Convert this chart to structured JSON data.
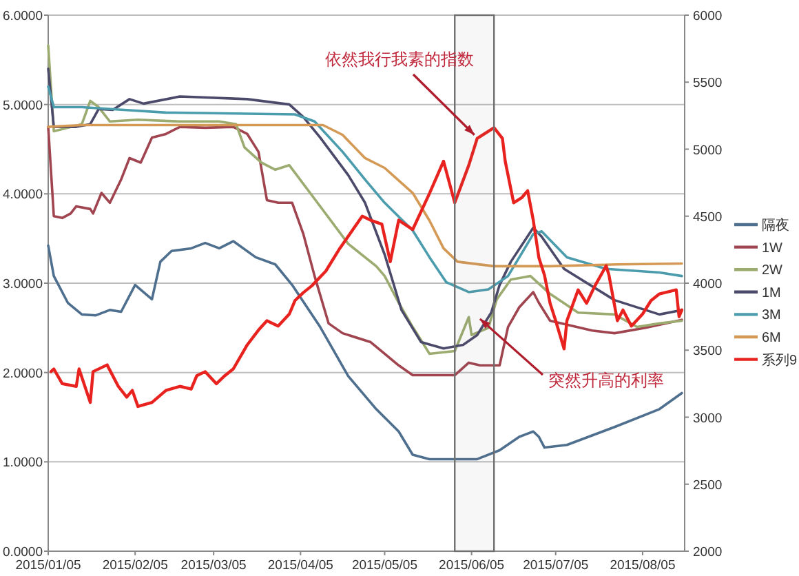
{
  "chart_data": {
    "type": "line",
    "xlim": [
      "2015-01-05",
      "2015-08-20"
    ],
    "xticks": [
      {
        "value": "2015-01-05",
        "label": "2015/01/05"
      },
      {
        "value": "2015-02-05",
        "label": "2015/02/05"
      },
      {
        "value": "2015-03-05",
        "label": "2015/03/05"
      },
      {
        "value": "2015-04-05",
        "label": "2015/04/05"
      },
      {
        "value": "2015-05-05",
        "label": "2015/05/05"
      },
      {
        "value": "2015-06-05",
        "label": "2015/06/05"
      },
      {
        "value": "2015-07-05",
        "label": "2015/07/05"
      },
      {
        "value": "2015-08-05",
        "label": "2015/08/05"
      }
    ],
    "ylim": [
      0,
      6
    ],
    "yticks": [
      {
        "value": 0,
        "label": "0.0000"
      },
      {
        "value": 1,
        "label": "1.0000"
      },
      {
        "value": 2,
        "label": "2.0000"
      },
      {
        "value": 3,
        "label": "3.0000"
      },
      {
        "value": 4,
        "label": "4.0000"
      },
      {
        "value": 5,
        "label": "5.0000"
      },
      {
        "value": 6,
        "label": "6.0000"
      }
    ],
    "y2lim": [
      2000,
      6000
    ],
    "y2ticks": [
      2000,
      2500,
      3000,
      3500,
      4000,
      4500,
      5000,
      5500,
      6000
    ],
    "grid": "y",
    "legend": "right",
    "annotations": [
      {
        "text": "依然我行我素的指数",
        "x": "2015-06-06",
        "y": 4.66
      },
      {
        "text": "突然升高的利率",
        "x": "2015-06-08",
        "y": 2.6
      }
    ],
    "bands": [
      {
        "axis": "x",
        "from": "2015-05-30",
        "to": "2015-06-13",
        "color": "#707070"
      }
    ],
    "series": [
      {
        "name": "隔夜",
        "color": "#4f6f8f",
        "x": [
          "2015-01-05",
          "2015-01-07",
          "2015-01-12",
          "2015-01-17",
          "2015-01-22",
          "2015-01-27",
          "2015-01-31",
          "2015-02-05",
          "2015-02-11",
          "2015-02-14",
          "2015-02-18",
          "2015-02-25",
          "2015-03-02",
          "2015-03-07",
          "2015-03-12",
          "2015-03-20",
          "2015-03-27",
          "2015-04-02",
          "2015-04-12",
          "2015-04-22",
          "2015-05-02",
          "2015-05-10",
          "2015-05-15",
          "2015-05-21",
          "2015-06-07",
          "2015-06-15",
          "2015-06-22",
          "2015-06-27",
          "2015-06-29",
          "2015-07-01",
          "2015-07-09",
          "2015-07-26",
          "2015-08-11",
          "2015-08-19"
        ],
        "values": [
          3.42,
          3.08,
          2.78,
          2.65,
          2.64,
          2.7,
          2.68,
          2.98,
          2.82,
          3.24,
          3.36,
          3.39,
          3.45,
          3.39,
          3.47,
          3.29,
          3.21,
          2.98,
          2.51,
          1.96,
          1.59,
          1.34,
          1.08,
          1.03,
          1.03,
          1.13,
          1.28,
          1.34,
          1.28,
          1.16,
          1.19,
          1.39,
          1.59,
          1.77
        ]
      },
      {
        "name": "1W",
        "color": "#a04550",
        "x": [
          "2015-01-05",
          "2015-01-07",
          "2015-01-10",
          "2015-01-13",
          "2015-01-15",
          "2015-01-20",
          "2015-01-21",
          "2015-01-24",
          "2015-01-27",
          "2015-01-31",
          "2015-02-03",
          "2015-02-07",
          "2015-02-11",
          "2015-02-16",
          "2015-02-21",
          "2015-03-02",
          "2015-03-12",
          "2015-03-17",
          "2015-03-21",
          "2015-03-24",
          "2015-03-28",
          "2015-04-02",
          "2015-04-06",
          "2015-04-10",
          "2015-04-15",
          "2015-04-20",
          "2015-04-30",
          "2015-05-10",
          "2015-05-15",
          "2015-05-30",
          "2015-06-04",
          "2015-06-08",
          "2015-06-15",
          "2015-06-18",
          "2015-06-22",
          "2015-06-27",
          "2015-06-29",
          "2015-07-03",
          "2015-07-18",
          "2015-07-26",
          "2015-08-06",
          "2015-08-19"
        ],
        "values": [
          4.75,
          3.75,
          3.73,
          3.78,
          3.86,
          3.83,
          3.78,
          4.01,
          3.9,
          4.16,
          4.4,
          4.35,
          4.63,
          4.67,
          4.75,
          4.74,
          4.75,
          4.67,
          4.47,
          3.93,
          3.9,
          3.9,
          3.55,
          3.08,
          2.55,
          2.44,
          2.34,
          2.08,
          1.97,
          1.97,
          2.11,
          2.08,
          2.08,
          2.51,
          2.73,
          2.9,
          2.78,
          2.58,
          2.47,
          2.44,
          2.5,
          2.59
        ]
      },
      {
        "name": "2W",
        "color": "#9cab70",
        "x": [
          "2015-01-05",
          "2015-01-07",
          "2015-01-12",
          "2015-01-17",
          "2015-01-20",
          "2015-01-23",
          "2015-01-27",
          "2015-02-06",
          "2015-02-21",
          "2015-03-07",
          "2015-03-13",
          "2015-03-16",
          "2015-03-22",
          "2015-03-27",
          "2015-04-01",
          "2015-04-12",
          "2015-04-22",
          "2015-05-02",
          "2015-05-05",
          "2015-05-10",
          "2015-05-15",
          "2015-05-21",
          "2015-05-30",
          "2015-06-04",
          "2015-06-05",
          "2015-06-11",
          "2015-06-14",
          "2015-06-19",
          "2015-06-26",
          "2015-07-03",
          "2015-07-13",
          "2015-07-26",
          "2015-08-03",
          "2015-08-11",
          "2015-08-19"
        ],
        "values": [
          5.66,
          4.7,
          4.74,
          4.78,
          5.04,
          4.97,
          4.81,
          4.83,
          4.81,
          4.81,
          4.78,
          4.52,
          4.35,
          4.27,
          4.32,
          3.86,
          3.44,
          3.19,
          3.08,
          2.78,
          2.51,
          2.21,
          2.24,
          2.62,
          2.42,
          2.5,
          2.82,
          3.04,
          3.08,
          2.88,
          2.67,
          2.65,
          2.51,
          2.55,
          2.58
        ]
      },
      {
        "name": "1M",
        "color": "#4b4a6b",
        "x": [
          "2015-01-05",
          "2015-01-07",
          "2015-01-15",
          "2015-01-20",
          "2015-01-23",
          "2015-01-28",
          "2015-02-03",
          "2015-02-08",
          "2015-02-21",
          "2015-03-17",
          "2015-04-01",
          "2015-04-06",
          "2015-04-12",
          "2015-04-22",
          "2015-04-28",
          "2015-05-05",
          "2015-05-11",
          "2015-05-18",
          "2015-05-26",
          "2015-06-02",
          "2015-06-07",
          "2015-06-12",
          "2015-06-15",
          "2015-06-19",
          "2015-06-27",
          "2015-06-30",
          "2015-07-08",
          "2015-07-26",
          "2015-08-11",
          "2015-08-19"
        ],
        "values": [
          5.4,
          4.75,
          4.75,
          4.78,
          4.95,
          4.94,
          5.06,
          5.01,
          5.09,
          5.06,
          5.0,
          4.86,
          4.63,
          4.21,
          3.9,
          3.32,
          2.7,
          2.34,
          2.27,
          2.31,
          2.42,
          2.67,
          2.98,
          3.24,
          3.62,
          3.52,
          3.16,
          2.81,
          2.65,
          2.7
        ]
      },
      {
        "name": "3M",
        "color": "#4b9cad",
        "x": [
          "2015-01-05",
          "2015-01-07",
          "2015-01-17",
          "2015-02-01",
          "2015-02-16",
          "2015-04-03",
          "2015-04-10",
          "2015-04-20",
          "2015-04-28",
          "2015-05-05",
          "2015-05-15",
          "2015-05-21",
          "2015-05-27",
          "2015-06-04",
          "2015-06-11",
          "2015-06-18",
          "2015-06-27",
          "2015-06-30",
          "2015-07-09",
          "2015-07-23",
          "2015-08-11",
          "2015-08-19"
        ],
        "values": [
          5.2,
          4.97,
          4.97,
          4.94,
          4.91,
          4.89,
          4.81,
          4.47,
          4.16,
          3.9,
          3.59,
          3.29,
          3.01,
          2.9,
          2.93,
          3.08,
          3.55,
          3.58,
          3.29,
          3.16,
          3.12,
          3.08
        ]
      },
      {
        "name": "6M",
        "color": "#d49a55",
        "x": [
          "2015-01-05",
          "2015-01-17",
          "2015-03-02",
          "2015-04-13",
          "2015-04-20",
          "2015-04-28",
          "2015-05-05",
          "2015-05-15",
          "2015-05-21",
          "2015-05-26",
          "2015-05-31",
          "2015-06-13",
          "2015-07-03",
          "2015-07-27",
          "2015-08-19"
        ],
        "values": [
          4.75,
          4.77,
          4.77,
          4.77,
          4.66,
          4.4,
          4.29,
          4.01,
          3.7,
          3.39,
          3.24,
          3.19,
          3.19,
          3.21,
          3.22
        ]
      },
      {
        "name": "系列9",
        "color": "#e8231f",
        "axis": "y2",
        "x": [
          "2015-01-06",
          "2015-01-07",
          "2015-01-10",
          "2015-01-15",
          "2015-01-16",
          "2015-01-20",
          "2015-01-21",
          "2015-01-26",
          "2015-01-30",
          "2015-02-02",
          "2015-02-04",
          "2015-02-06",
          "2015-02-11",
          "2015-02-16",
          "2015-02-21",
          "2015-02-25",
          "2015-02-27",
          "2015-03-02",
          "2015-03-06",
          "2015-03-09",
          "2015-03-12",
          "2015-03-17",
          "2015-03-21",
          "2015-03-24",
          "2015-03-28",
          "2015-04-01",
          "2015-04-03",
          "2015-04-06",
          "2015-04-09",
          "2015-04-14",
          "2015-04-19",
          "2015-04-27",
          "2015-04-30",
          "2015-05-04",
          "2015-05-07",
          "2015-05-10",
          "2015-05-15",
          "2015-05-21",
          "2015-05-26",
          "2015-05-30",
          "2015-06-04",
          "2015-06-07",
          "2015-06-10",
          "2015-06-13",
          "2015-06-16",
          "2015-06-17",
          "2015-06-20",
          "2015-06-23",
          "2015-06-25",
          "2015-06-27",
          "2015-06-29",
          "2015-07-01",
          "2015-07-03",
          "2015-07-05",
          "2015-07-08",
          "2015-07-09",
          "2015-07-13",
          "2015-07-16",
          "2015-07-19",
          "2015-07-23",
          "2015-07-24",
          "2015-07-27",
          "2015-07-29",
          "2015-08-01",
          "2015-08-05",
          "2015-08-08",
          "2015-08-11",
          "2015-08-17",
          "2015-08-18",
          "2015-08-19"
        ],
        "values": [
          3340,
          3360,
          3250,
          3230,
          3360,
          3110,
          3340,
          3390,
          3230,
          3150,
          3200,
          3080,
          3110,
          3200,
          3230,
          3210,
          3310,
          3340,
          3250,
          3310,
          3360,
          3540,
          3650,
          3720,
          3680,
          3770,
          3870,
          3930,
          3980,
          4090,
          4260,
          4500,
          4470,
          4440,
          4160,
          4470,
          4400,
          4670,
          4910,
          4600,
          4880,
          5080,
          5120,
          5160,
          5080,
          4910,
          4600,
          4640,
          4690,
          4470,
          4190,
          4060,
          3850,
          3720,
          3510,
          3720,
          3950,
          3850,
          3980,
          4130,
          4060,
          3720,
          3800,
          3680,
          3770,
          3870,
          3920,
          3950,
          3750,
          3800
        ]
      }
    ]
  }
}
